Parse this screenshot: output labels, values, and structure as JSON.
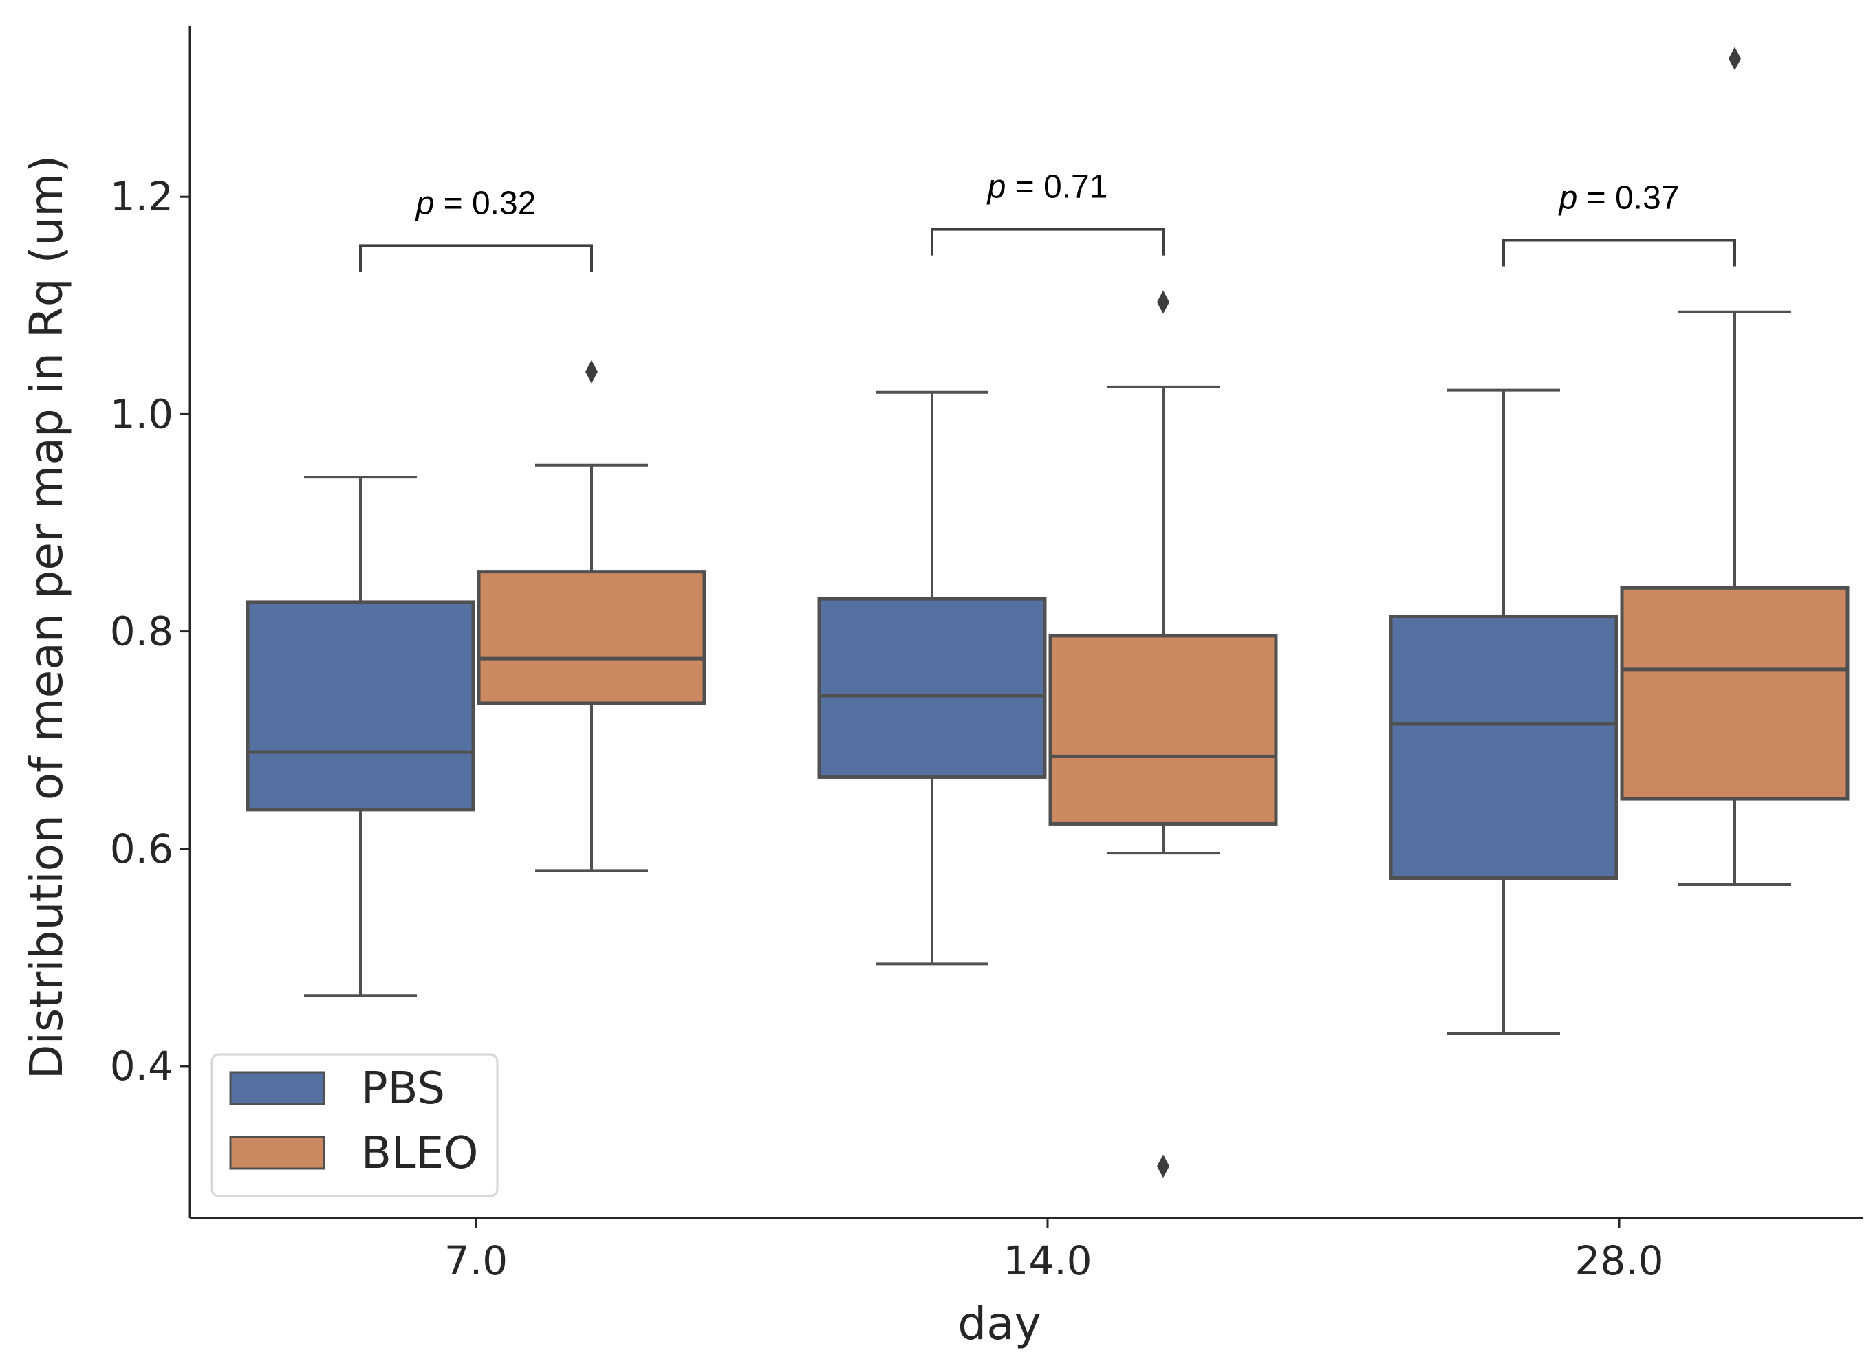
{
  "chart_data": {
    "type": "box",
    "xlabel": "day",
    "ylabel": "Distribution of mean per map in Rq (um)",
    "categories": [
      "7.0",
      "14.0",
      "28.0"
    ],
    "ylim": [
      0.28,
      1.35
    ],
    "yticks": [
      0.4,
      0.6,
      0.8,
      1.0,
      1.2
    ],
    "ytick_labels": [
      "0.4",
      "0.6",
      "0.8",
      "1.0",
      "1.2"
    ],
    "legend": {
      "position": "lower-left",
      "entries": [
        {
          "label": "PBS",
          "color": "#5471a2"
        },
        {
          "label": "BLEO",
          "color": "#cb8861"
        }
      ]
    },
    "series": [
      {
        "name": "PBS",
        "color": "#5471a2",
        "boxes": [
          {
            "whislo": 0.465,
            "q1": 0.636,
            "med": 0.689,
            "q3": 0.827,
            "whishi": 0.942,
            "fliers": []
          },
          {
            "whislo": 0.494,
            "q1": 0.666,
            "med": 0.741,
            "q3": 0.83,
            "whishi": 1.02,
            "fliers": []
          },
          {
            "whislo": 0.43,
            "q1": 0.573,
            "med": 0.715,
            "q3": 0.814,
            "whishi": 1.022,
            "fliers": []
          }
        ]
      },
      {
        "name": "BLEO",
        "color": "#cb8861",
        "boxes": [
          {
            "whislo": 0.58,
            "q1": 0.734,
            "med": 0.775,
            "q3": 0.855,
            "whishi": 0.953,
            "fliers": [
              1.039
            ]
          },
          {
            "whislo": 0.596,
            "q1": 0.623,
            "med": 0.685,
            "q3": 0.796,
            "whishi": 1.025,
            "fliers": [
              1.103,
              0.308
            ]
          },
          {
            "whislo": 0.567,
            "q1": 0.646,
            "med": 0.765,
            "q3": 0.84,
            "whishi": 1.094,
            "fliers": [
              1.327
            ]
          }
        ]
      }
    ],
    "annotations": [
      {
        "category": "7.0",
        "prefix": "p",
        "text": " = 0.32",
        "y": 1.155
      },
      {
        "category": "14.0",
        "prefix": "p",
        "text": " = 0.71",
        "y": 1.17
      },
      {
        "category": "28.0",
        "prefix": "p",
        "text": " = 0.37",
        "y": 1.16
      }
    ]
  }
}
